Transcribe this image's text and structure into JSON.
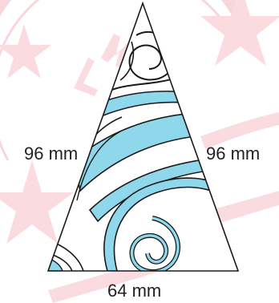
{
  "figure": {
    "labels": {
      "left_side": "96 mm",
      "right_side": "96 mm",
      "base": "64 mm"
    },
    "colors": {
      "outline": "#1a1a1a",
      "fill_accent": "#8fd8ec",
      "watermark": "#f4b6bf",
      "background": "#ffffff"
    }
  }
}
